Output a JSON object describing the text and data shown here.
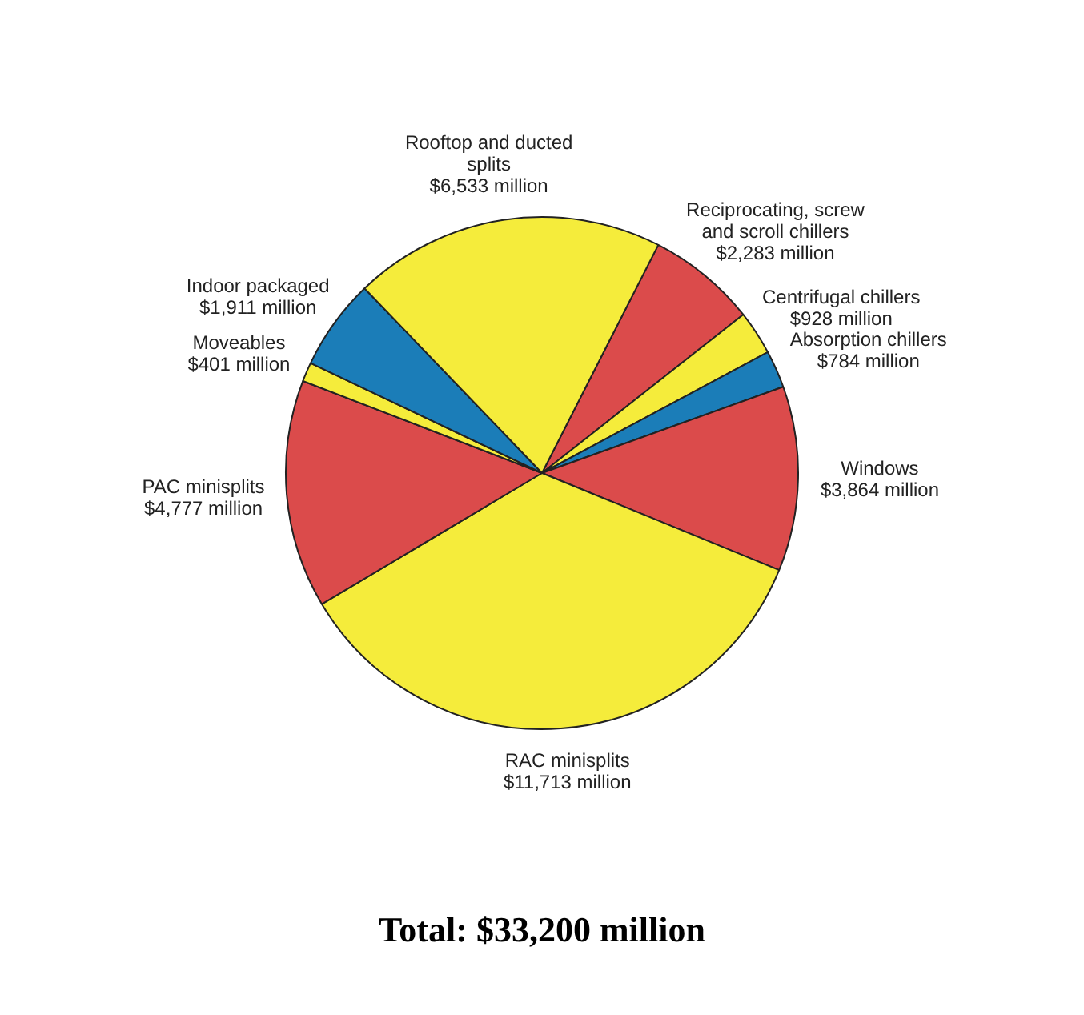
{
  "chart_data": {
    "type": "pie",
    "categories": [
      "Reciprocating, screw and scroll chillers",
      "Centrifugal chillers",
      "Absorption chillers",
      "Windows",
      "RAC minisplits",
      "PAC minisplits",
      "Moveables",
      "Indoor packaged",
      "Rooftop and ducted splits"
    ],
    "values": [
      2283,
      928,
      784,
      3864,
      11713,
      4777,
      401,
      1911,
      6533
    ],
    "value_labels": [
      "$2,283 million",
      "$928 million",
      "$784 million",
      "$3,864 million",
      "$11,713 million",
      "$4,777 million",
      "$401 million",
      "$1,911 million",
      "$6,533 million"
    ],
    "colors": [
      "#db4b4b",
      "#f5ec3b",
      "#1b7db8",
      "#db4b4b",
      "#f5ec3b",
      "#db4b4b",
      "#f5ec3b",
      "#1b7db8",
      "#f5ec3b"
    ],
    "annotations": [
      "Total: $33,200 million"
    ],
    "legend": false
  }
}
